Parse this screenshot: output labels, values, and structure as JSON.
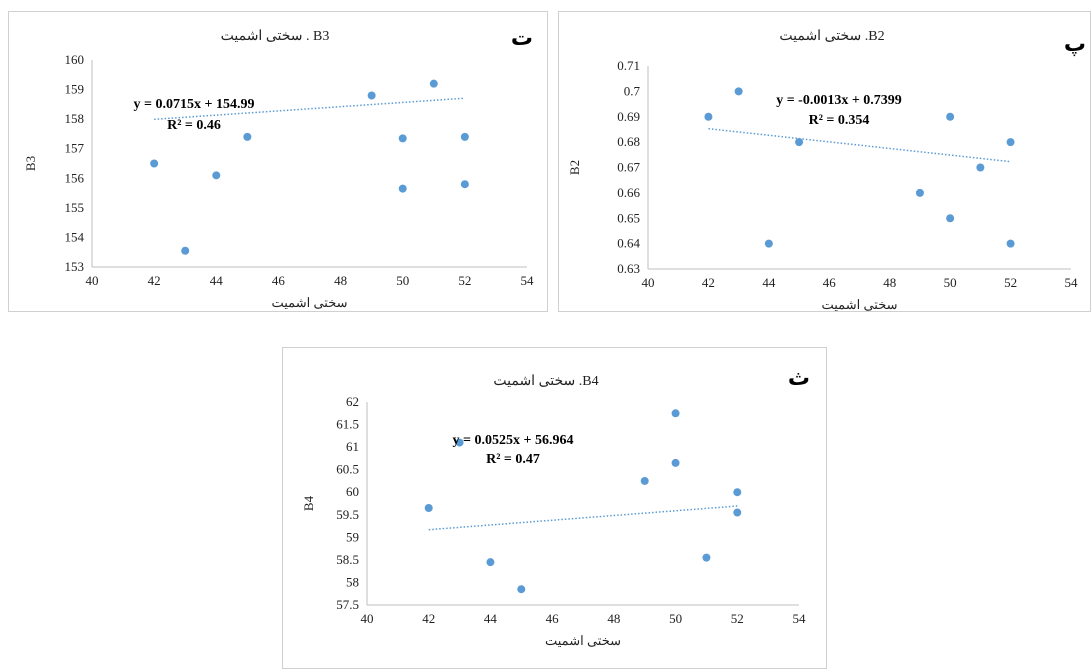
{
  "chart_data": [
    {
      "id": "t",
      "panel_letter": "ت",
      "type": "scatter",
      "title": "سختی اشمیت . B3",
      "xlabel": "سختی اشمیت",
      "ylabel": "B3",
      "xlim": [
        40,
        54
      ],
      "ylim": [
        153,
        160
      ],
      "xticks": [
        40,
        42,
        44,
        46,
        48,
        50,
        52,
        54
      ],
      "yticks": [
        153,
        154,
        155,
        156,
        157,
        158,
        159,
        160
      ],
      "points": [
        {
          "x": 42,
          "y": 156.5
        },
        {
          "x": 43,
          "y": 153.55
        },
        {
          "x": 44,
          "y": 156.1
        },
        {
          "x": 45,
          "y": 157.4
        },
        {
          "x": 49,
          "y": 158.8
        },
        {
          "x": 50,
          "y": 157.35
        },
        {
          "x": 50,
          "y": 155.65
        },
        {
          "x": 51,
          "y": 159.2
        },
        {
          "x": 52,
          "y": 157.4
        },
        {
          "x": 52,
          "y": 155.8
        }
      ],
      "trendline": {
        "slope": 0.0715,
        "intercept": 154.99,
        "x_range": [
          42,
          52
        ]
      },
      "equation": "y = 0.0715x + 154.99",
      "r2": "R² = 0.46",
      "marker_color": "#5b9bd5",
      "trend_color": "#5b9bd5"
    },
    {
      "id": "p",
      "panel_letter": "پ",
      "type": "scatter",
      "title": "سختی اشمیت .B2",
      "xlabel": "سختی اشمیت",
      "ylabel": "B2",
      "xlim": [
        40,
        54
      ],
      "ylim": [
        0.63,
        0.71
      ],
      "xticks": [
        40,
        42,
        44,
        46,
        48,
        50,
        52,
        54
      ],
      "yticks": [
        0.63,
        0.64,
        0.65,
        0.66,
        0.67,
        0.68,
        0.69,
        0.7,
        0.71
      ],
      "points": [
        {
          "x": 42,
          "y": 0.69
        },
        {
          "x": 43,
          "y": 0.7
        },
        {
          "x": 44,
          "y": 0.64
        },
        {
          "x": 45,
          "y": 0.68
        },
        {
          "x": 49,
          "y": 0.66
        },
        {
          "x": 50,
          "y": 0.69
        },
        {
          "x": 50,
          "y": 0.65
        },
        {
          "x": 51,
          "y": 0.67
        },
        {
          "x": 52,
          "y": 0.68
        },
        {
          "x": 52,
          "y": 0.64
        }
      ],
      "trendline": {
        "slope": -0.0013,
        "intercept": 0.7399,
        "x_range": [
          42,
          52
        ]
      },
      "equation": "y = -0.0013x + 0.7399",
      "r2": "R² = 0.354",
      "marker_color": "#5b9bd5",
      "trend_color": "#5b9bd5"
    },
    {
      "id": "s",
      "panel_letter": "ث",
      "type": "scatter",
      "title": "سختی اشمیت .B4",
      "xlabel": "سختی اشمیت",
      "ylabel": "B4",
      "xlim": [
        40,
        54
      ],
      "ylim": [
        57.5,
        62
      ],
      "xticks": [
        40,
        42,
        44,
        46,
        48,
        50,
        52,
        54
      ],
      "yticks": [
        57.5,
        58,
        58.5,
        59,
        59.5,
        60,
        60.5,
        61,
        61.5,
        62
      ],
      "points": [
        {
          "x": 42,
          "y": 59.65
        },
        {
          "x": 43,
          "y": 61.1
        },
        {
          "x": 44,
          "y": 58.45
        },
        {
          "x": 45,
          "y": 57.85
        },
        {
          "x": 49,
          "y": 60.25
        },
        {
          "x": 50,
          "y": 61.75
        },
        {
          "x": 50,
          "y": 60.65
        },
        {
          "x": 51,
          "y": 58.55
        },
        {
          "x": 52,
          "y": 60.0
        },
        {
          "x": 52,
          "y": 59.55
        }
      ],
      "trendline": {
        "slope": 0.0525,
        "intercept": 56.964,
        "x_range": [
          42,
          52
        ]
      },
      "equation": "y = 0.0525x + 56.964",
      "r2": "R² = 0.47",
      "marker_color": "#5b9bd5",
      "trend_color": "#5b9bd5"
    }
  ]
}
